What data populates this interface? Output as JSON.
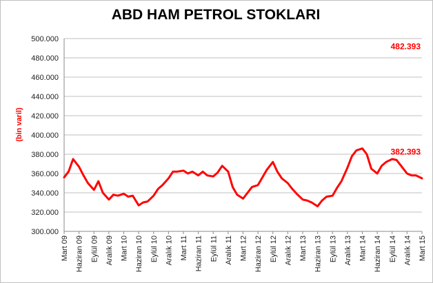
{
  "chart_data": {
    "type": "line",
    "title": "ABD HAM PETROL STOKLARI",
    "xlabel": "",
    "ylabel": "(bin varil)",
    "ylim": [
      300000,
      500000
    ],
    "yticks": [
      300000,
      320000,
      340000,
      360000,
      380000,
      400000,
      420000,
      440000,
      460000,
      480000,
      500000
    ],
    "ytick_labels": [
      "300.000",
      "320.000",
      "340.000",
      "360.000",
      "380.000",
      "400.000",
      "420.000",
      "440.000",
      "460.000",
      "480.000",
      "500.000"
    ],
    "x_tick_labels": [
      "Mart 09",
      "Haziran 09",
      "Eylül 09",
      "Aralık 09",
      "Mart 10",
      "Haziran 10",
      "Eylül 10",
      "Aralık 10",
      "Mart 11",
      "Haziran 11",
      "Eylül 11",
      "Aralık 11",
      "Mart 12",
      "Haziran 12",
      "Eylül 12",
      "Aralık 12",
      "Mart 13",
      "Haziran 13",
      "Eylül 13",
      "Aralık 13",
      "Mart 14",
      "Haziran 14",
      "Eylül 14",
      "Aralık 14",
      "Mart 15"
    ],
    "x": [
      0,
      0.3,
      0.6,
      1.0,
      1.3,
      1.6,
      2.0,
      2.3,
      2.6,
      3.0,
      3.3,
      3.6,
      4.0,
      4.3,
      4.6,
      5.0,
      5.3,
      5.6,
      6.0,
      6.3,
      6.6,
      7.0,
      7.3,
      7.6,
      8.0,
      8.3,
      8.6,
      9.0,
      9.3,
      9.6,
      10.0,
      10.3,
      10.6,
      11.0,
      11.3,
      11.6,
      12.0,
      12.3,
      12.6,
      13.0,
      13.3,
      13.6,
      14.0,
      14.3,
      14.6,
      15.0,
      15.3,
      15.6,
      16.0,
      16.3,
      16.6,
      17.0,
      17.3,
      17.6,
      18.0,
      18.3,
      18.6,
      19.0,
      19.3,
      19.6,
      20.0,
      20.3,
      20.6,
      21.0,
      21.3,
      21.6,
      22.0,
      22.3,
      22.6,
      23.0,
      23.3,
      23.6,
      24.0
    ],
    "series": [
      {
        "color": "#ff0000",
        "values": [
          356000,
          362000,
          375000,
          367000,
          358000,
          350000,
          343000,
          352000,
          340000,
          333000,
          338000,
          337000,
          339000,
          336000,
          337000,
          327000,
          330000,
          331000,
          337000,
          344000,
          348000,
          355000,
          362000,
          362000,
          363000,
          360000,
          362000,
          358000,
          362000,
          358000,
          357000,
          361000,
          368000,
          362000,
          346000,
          338000,
          334000,
          340000,
          346000,
          348000,
          356000,
          364000,
          372000,
          362000,
          355000,
          350000,
          344000,
          339000,
          333000,
          332000,
          330000,
          326000,
          332000,
          336000,
          337000,
          345000,
          352000,
          366000,
          378000,
          384000,
          386000,
          380000,
          365000,
          360000,
          368000,
          372000,
          375000,
          374000,
          368000,
          360000,
          358000,
          358000,
          355000
        ]
      }
    ],
    "annotations": [
      {
        "label": "482.393",
        "value": 482393,
        "color": "#ff0000"
      },
      {
        "label": "382.393",
        "value": 382393,
        "color": "#ff0000"
      }
    ]
  }
}
